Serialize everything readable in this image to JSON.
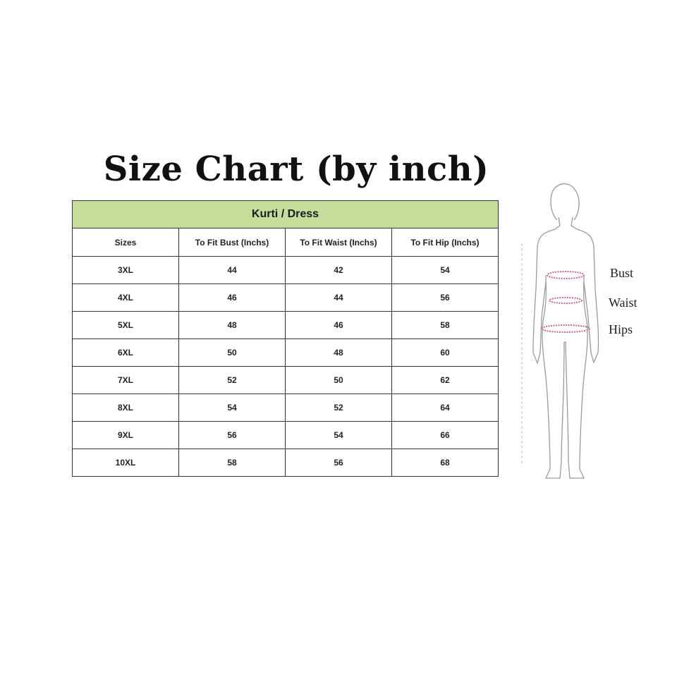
{
  "title": "Size Chart (by inch)",
  "table": {
    "group_header": "Kurti / Dress",
    "header_color": "#c5dd9b",
    "columns": [
      "Sizes",
      "To Fit Bust (Inchs)",
      "To Fit Waist (Inchs)",
      "To Fit Hip (Inchs)"
    ],
    "rows": [
      [
        "3XL",
        "44",
        "42",
        "54"
      ],
      [
        "4XL",
        "46",
        "44",
        "56"
      ],
      [
        "5XL",
        "48",
        "46",
        "58"
      ],
      [
        "6XL",
        "50",
        "48",
        "60"
      ],
      [
        "7XL",
        "52",
        "50",
        "62"
      ],
      [
        "8XL",
        "54",
        "52",
        "64"
      ],
      [
        "9XL",
        "56",
        "54",
        "66"
      ],
      [
        "10XL",
        "58",
        "56",
        "68"
      ]
    ]
  },
  "figure": {
    "icon": "female-body-outline-icon",
    "measure_color": "#d0609a",
    "labels": {
      "bust": "Bust",
      "waist": "Waist",
      "hips": "Hips"
    }
  }
}
